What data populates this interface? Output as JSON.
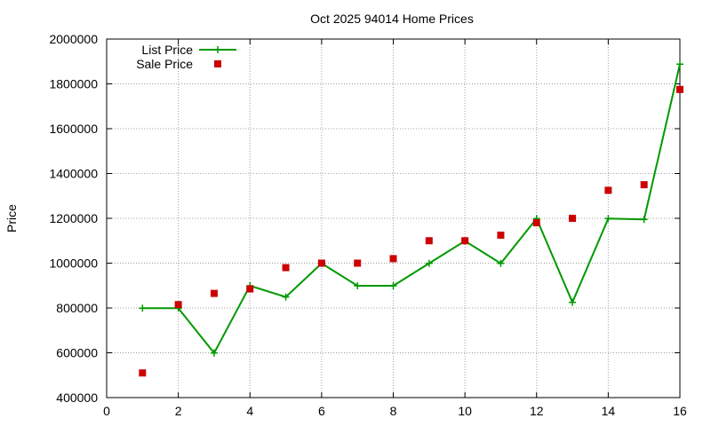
{
  "chart_data": {
    "type": "line",
    "title": "Oct 2025 94014 Home Prices",
    "xlabel": "",
    "ylabel": "Price",
    "xlim": [
      0,
      16
    ],
    "ylim": [
      400000,
      2000000
    ],
    "xticks": [
      0,
      2,
      4,
      6,
      8,
      10,
      12,
      14,
      16
    ],
    "yticks": [
      400000,
      600000,
      800000,
      1000000,
      1200000,
      1400000,
      1600000,
      1800000,
      2000000
    ],
    "grid": true,
    "legend_position": "top-left",
    "series": [
      {
        "name": "List Price",
        "style": "line-with-plus-markers",
        "color": "#009900",
        "x": [
          1,
          2,
          3,
          4,
          5,
          6,
          7,
          8,
          9,
          10,
          11,
          12,
          13,
          14,
          15,
          16
        ],
        "values": [
          799000,
          799000,
          599000,
          899000,
          849000,
          999000,
          899000,
          899000,
          999000,
          1099000,
          999000,
          1199000,
          825000,
          1199000,
          1195000,
          1888000
        ]
      },
      {
        "name": "Sale Price",
        "style": "square-points",
        "color": "#cc0000",
        "x": [
          1,
          2,
          3,
          4,
          5,
          6,
          7,
          8,
          9,
          10,
          11,
          12,
          13,
          14,
          15,
          16
        ],
        "values": [
          510000,
          815000,
          865000,
          885000,
          980000,
          1000000,
          1000000,
          1020000,
          1100000,
          1100000,
          1125000,
          1180000,
          1200000,
          1325000,
          1350000,
          1775000
        ]
      }
    ]
  }
}
